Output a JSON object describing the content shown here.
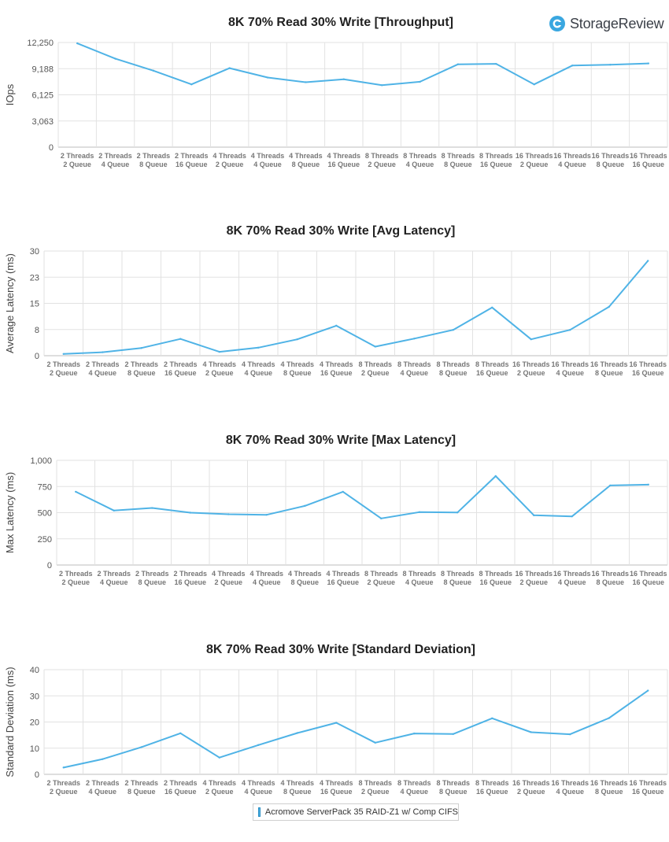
{
  "brand": {
    "name": "StorageReview"
  },
  "legend": {
    "label": "Acromove ServerPack 35 RAID-Z1 w/ Comp CIFS",
    "color": "#4fb3e6"
  },
  "chart_data": [
    {
      "type": "line",
      "title": "8K 70% Read 30% Write [Throughput]",
      "ylabel": "IOps",
      "xlabel": "",
      "ylim": [
        0,
        12250
      ],
      "yticks": [
        "0",
        "3,063",
        "6,125",
        "9,188",
        "12,250"
      ],
      "categories": [
        [
          "2 Threads",
          "2 Queue"
        ],
        [
          "2 Threads",
          "4 Queue"
        ],
        [
          "2 Threads",
          "8 Queue"
        ],
        [
          "2 Threads",
          "16 Queue"
        ],
        [
          "4 Threads",
          "2 Queue"
        ],
        [
          "4 Threads",
          "4 Queue"
        ],
        [
          "4 Threads",
          "8 Queue"
        ],
        [
          "4 Threads",
          "16 Queue"
        ],
        [
          "8 Threads",
          "2 Queue"
        ],
        [
          "8 Threads",
          "4 Queue"
        ],
        [
          "8 Threads",
          "8 Queue"
        ],
        [
          "8 Threads",
          "16 Queue"
        ],
        [
          "16 Threads",
          "2 Queue"
        ],
        [
          "16 Threads",
          "4 Queue"
        ],
        [
          "16 Threads",
          "8 Queue"
        ],
        [
          "16 Threads",
          "16 Queue"
        ]
      ],
      "series": [
        {
          "name": "Acromove ServerPack 35 RAID-Z1 w/ Comp CIFS",
          "values": [
            12150,
            10350,
            8950,
            7350,
            9250,
            8150,
            7600,
            7950,
            7250,
            7650,
            9700,
            9750,
            7350,
            9550,
            9650,
            9800
          ]
        }
      ],
      "grid": true
    },
    {
      "type": "line",
      "title": "8K 70% Read 30% Write [Avg Latency]",
      "ylabel": "Average Latency (ms)",
      "xlabel": "",
      "ylim": [
        0,
        30
      ],
      "yticks": [
        "0",
        "8",
        "15",
        "23",
        "30"
      ],
      "categories": [
        [
          "2 Threads",
          "2 Queue"
        ],
        [
          "2 Threads",
          "4 Queue"
        ],
        [
          "2 Threads",
          "8 Queue"
        ],
        [
          "2 Threads",
          "16 Queue"
        ],
        [
          "4 Threads",
          "2 Queue"
        ],
        [
          "4 Threads",
          "4 Queue"
        ],
        [
          "4 Threads",
          "8 Queue"
        ],
        [
          "4 Threads",
          "16 Queue"
        ],
        [
          "8 Threads",
          "2 Queue"
        ],
        [
          "8 Threads",
          "4 Queue"
        ],
        [
          "8 Threads",
          "8 Queue"
        ],
        [
          "8 Threads",
          "16 Queue"
        ],
        [
          "16 Threads",
          "2 Queue"
        ],
        [
          "16 Threads",
          "4 Queue"
        ],
        [
          "16 Threads",
          "8 Queue"
        ],
        [
          "16 Threads",
          "16 Queue"
        ]
      ],
      "series": [
        {
          "name": "Acromove ServerPack 35 RAID-Z1 w/ Comp CIFS",
          "values": [
            0.5,
            1.0,
            2.2,
            4.8,
            1.1,
            2.3,
            4.7,
            8.6,
            2.6,
            4.9,
            7.4,
            13.8,
            4.7,
            7.4,
            14.0,
            27.2
          ]
        }
      ],
      "grid": true
    },
    {
      "type": "line",
      "title": "8K 70% Read 30% Write [Max Latency]",
      "ylabel": "Max Latency (ms)",
      "xlabel": "",
      "ylim": [
        0,
        1000
      ],
      "yticks": [
        "0",
        "250",
        "500",
        "750",
        "1,000"
      ],
      "categories": [
        [
          "2 Threads",
          "2 Queue"
        ],
        [
          "2 Threads",
          "4 Queue"
        ],
        [
          "2 Threads",
          "8 Queue"
        ],
        [
          "2 Threads",
          "16 Queue"
        ],
        [
          "4 Threads",
          "2 Queue"
        ],
        [
          "4 Threads",
          "4 Queue"
        ],
        [
          "4 Threads",
          "8 Queue"
        ],
        [
          "4 Threads",
          "16 Queue"
        ],
        [
          "8 Threads",
          "2 Queue"
        ],
        [
          "8 Threads",
          "4 Queue"
        ],
        [
          "8 Threads",
          "8 Queue"
        ],
        [
          "8 Threads",
          "16 Queue"
        ],
        [
          "16 Threads",
          "2 Queue"
        ],
        [
          "16 Threads",
          "4 Queue"
        ],
        [
          "16 Threads",
          "8 Queue"
        ],
        [
          "16 Threads",
          "16 Queue"
        ]
      ],
      "series": [
        {
          "name": "Acromove ServerPack 35 RAID-Z1 w/ Comp CIFS",
          "values": [
            700,
            520,
            545,
            500,
            485,
            480,
            565,
            700,
            445,
            505,
            502,
            850,
            475,
            465,
            760,
            768
          ]
        }
      ],
      "grid": true
    },
    {
      "type": "line",
      "title": "8K 70% Read 30% Write [Standard Deviation]",
      "ylabel": "Standard Deviation (ms)",
      "xlabel": "",
      "ylim": [
        0,
        40
      ],
      "yticks": [
        "0",
        "10",
        "20",
        "30",
        "40"
      ],
      "categories": [
        [
          "2 Threads",
          "2 Queue"
        ],
        [
          "2 Threads",
          "4 Queue"
        ],
        [
          "2 Threads",
          "8 Queue"
        ],
        [
          "2 Threads",
          "16 Queue"
        ],
        [
          "4 Threads",
          "2 Queue"
        ],
        [
          "4 Threads",
          "4 Queue"
        ],
        [
          "4 Threads",
          "8 Queue"
        ],
        [
          "4 Threads",
          "16 Queue"
        ],
        [
          "8 Threads",
          "2 Queue"
        ],
        [
          "8 Threads",
          "4 Queue"
        ],
        [
          "8 Threads",
          "8 Queue"
        ],
        [
          "8 Threads",
          "16 Queue"
        ],
        [
          "16 Threads",
          "2 Queue"
        ],
        [
          "16 Threads",
          "4 Queue"
        ],
        [
          "16 Threads",
          "8 Queue"
        ],
        [
          "16 Threads",
          "16 Queue"
        ]
      ],
      "series": [
        {
          "name": "Acromove ServerPack 35 RAID-Z1 w/ Comp CIFS",
          "values": [
            2.6,
            5.8,
            10.4,
            15.7,
            6.4,
            11.2,
            15.8,
            19.7,
            12.1,
            15.6,
            15.4,
            21.4,
            16.1,
            15.3,
            21.5,
            32.0
          ]
        }
      ],
      "grid": true
    }
  ]
}
